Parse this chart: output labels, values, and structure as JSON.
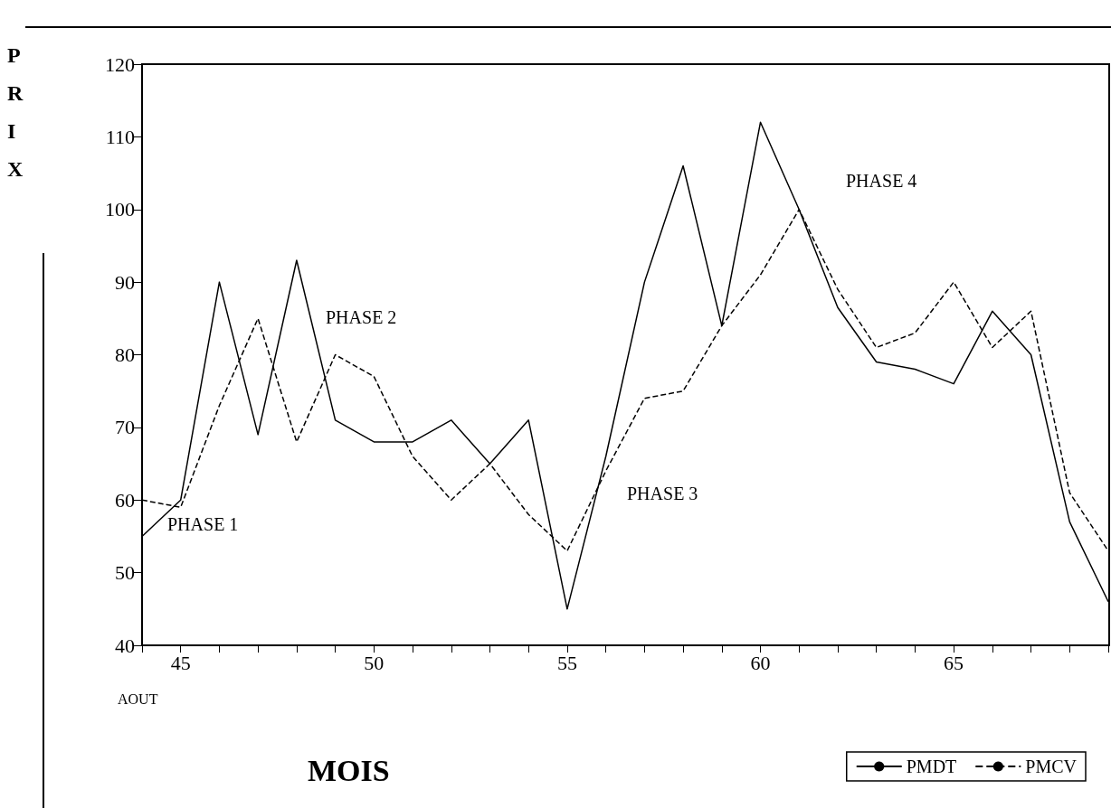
{
  "chart_data": {
    "type": "line",
    "xlabel": "MOIS",
    "ylabel": "PRIX",
    "x": [
      44,
      45,
      46,
      47,
      48,
      49,
      50,
      51,
      52,
      53,
      54,
      55,
      56,
      57,
      58,
      59,
      60,
      61,
      62,
      63,
      64,
      65,
      66,
      67,
      68,
      69
    ],
    "series": [
      {
        "name": "PMDT",
        "color": "#000000",
        "line_style": "solid",
        "values": [
          55,
          60,
          90,
          69,
          93,
          71,
          68,
          68,
          71,
          65,
          71,
          45,
          66,
          90,
          106,
          84,
          112,
          100,
          86.5,
          79,
          78,
          76,
          86,
          80,
          57,
          46
        ]
      },
      {
        "name": "PMCV",
        "color": "#000000",
        "line_style": "dashed",
        "values": [
          60,
          59,
          73,
          85,
          68,
          80,
          77,
          66,
          60,
          65,
          58,
          53,
          64,
          74,
          75,
          84,
          91,
          100,
          89,
          81,
          83,
          90,
          81,
          86,
          61,
          53
        ]
      }
    ],
    "xlim": [
      44,
      69
    ],
    "xticks": [
      {
        "value": 44,
        "label": null
      },
      45,
      {
        "value": 46,
        "label": null
      },
      {
        "value": 47,
        "label": null
      },
      {
        "value": 48,
        "label": null
      },
      {
        "value": 49,
        "label": null
      },
      50,
      {
        "value": 51,
        "label": null
      },
      {
        "value": 52,
        "label": null
      },
      {
        "value": 53,
        "label": null
      },
      {
        "value": 54,
        "label": null
      },
      55,
      {
        "value": 56,
        "label": null
      },
      {
        "value": 57,
        "label": null
      },
      {
        "value": 58,
        "label": null
      },
      {
        "value": 59,
        "label": null
      },
      60,
      {
        "value": 61,
        "label": null
      },
      {
        "value": 62,
        "label": null
      },
      {
        "value": 63,
        "label": null
      },
      {
        "value": 64,
        "label": null
      },
      65,
      {
        "value": 66,
        "label": null
      },
      {
        "value": 67,
        "label": null
      },
      {
        "value": 68,
        "label": null
      },
      {
        "value": 69,
        "label": null
      }
    ],
    "ylim": [
      40,
      120
    ],
    "yticks": [
      40,
      50,
      60,
      70,
      80,
      90,
      100,
      110,
      120
    ],
    "grid": false,
    "legend": "bottom right",
    "annotations": [
      "PHASE 1",
      "PHASE 2",
      "PHASE 3",
      "PHASE 4",
      "AOUT"
    ]
  }
}
